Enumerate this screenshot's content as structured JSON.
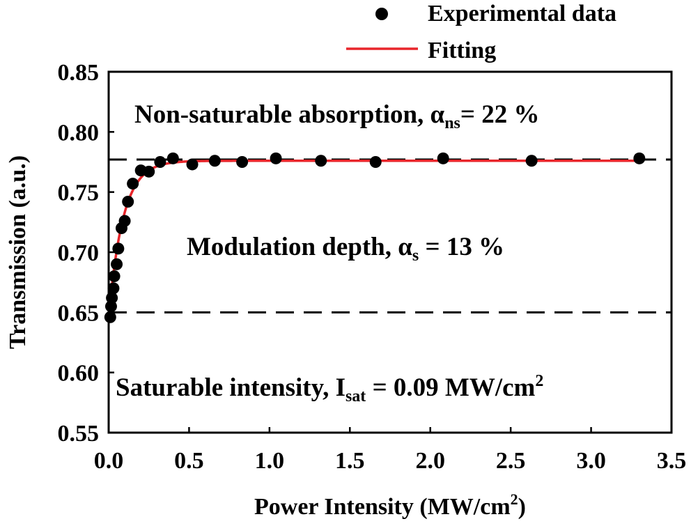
{
  "chart_data": {
    "type": "scatter",
    "xlabel": "Power Intensity (MW/cm",
    "xlabel_sup": "2",
    "xlabel_end": ")",
    "ylabel": "Transmission (a.u.)",
    "xlim": [
      0.0,
      3.5
    ],
    "ylim": [
      0.55,
      0.85
    ],
    "x_ticks": [
      "0.0",
      "0.5",
      "1.0",
      "1.5",
      "2.0",
      "2.5",
      "3.0",
      "3.5"
    ],
    "y_ticks": [
      "0.55",
      "0.60",
      "0.65",
      "0.70",
      "0.75",
      "0.80",
      "0.85"
    ],
    "grid": false,
    "legend": {
      "position": "top-right, above plot",
      "entries": [
        {
          "label": "Experimental data",
          "marker": "circle",
          "color": "#000000"
        },
        {
          "label": "Fitting",
          "marker": "line",
          "color": "#e8262b"
        }
      ]
    },
    "series": [
      {
        "name": "Experimental data",
        "x": [
          0.01,
          0.015,
          0.02,
          0.03,
          0.035,
          0.05,
          0.06,
          0.08,
          0.1,
          0.12,
          0.15,
          0.2,
          0.25,
          0.32,
          0.4,
          0.52,
          0.66,
          0.83,
          1.04,
          1.32,
          1.66,
          2.08,
          2.63,
          3.3
        ],
        "y": [
          0.646,
          0.655,
          0.662,
          0.67,
          0.68,
          0.69,
          0.703,
          0.72,
          0.726,
          0.742,
          0.757,
          0.768,
          0.767,
          0.775,
          0.778,
          0.773,
          0.776,
          0.775,
          0.778,
          0.776,
          0.775,
          0.778,
          0.776,
          0.778
        ]
      },
      {
        "name": "Fitting",
        "model": "T(I) = T_ns - alpha_s * exp(-I / I_sat)",
        "params": {
          "T_ns": 0.776,
          "alpha_s": 0.13,
          "I_sat": 0.09
        }
      }
    ],
    "reference_lines": [
      {
        "y": 0.777,
        "style": "dashed",
        "color": "#000000"
      },
      {
        "y": 0.65,
        "style": "dashed",
        "color": "#000000"
      }
    ],
    "annotations": {
      "nonsat": {
        "text": "Non-saturable absorption, α",
        "sub": "ns",
        "tail": "= 22 %"
      },
      "moddepth": {
        "text": "Modulation depth, α",
        "sub": "s",
        "tail": " = 13 %"
      },
      "satint": {
        "text": "Saturable intensity,  I",
        "sub": "sat",
        "tail": " = 0.09 MW/cm",
        "sup": "2"
      }
    }
  }
}
